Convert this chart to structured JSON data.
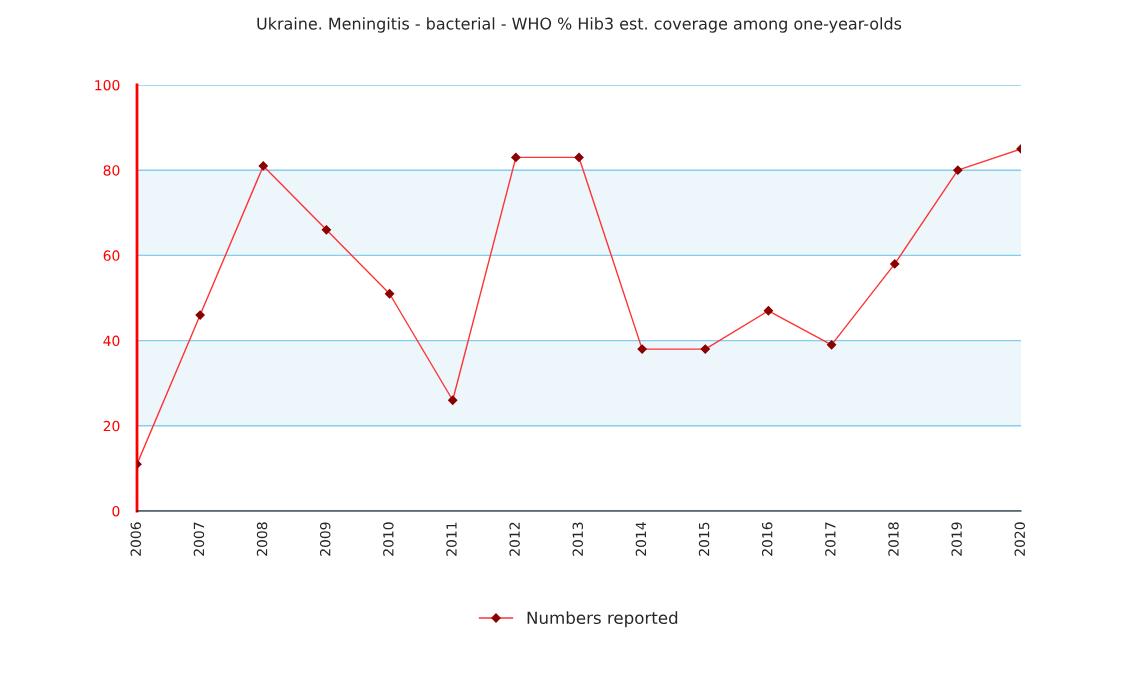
{
  "chart_data": {
    "type": "line",
    "title": "Ukraine. Meningitis - bacterial - WHO % Hib3 est. coverage among one-year-olds",
    "categories": [
      "2006",
      "2007",
      "2008",
      "2009",
      "2010",
      "2011",
      "2012",
      "2013",
      "2014",
      "2015",
      "2016",
      "2017",
      "2018",
      "2019",
      "2020"
    ],
    "series": [
      {
        "name": "Numbers reported",
        "color": "#ff3333",
        "values": [
          11,
          46,
          81,
          66,
          51,
          26,
          83,
          83,
          38,
          38,
          47,
          39,
          58,
          80,
          85
        ]
      }
    ],
    "ylim": [
      0,
      100
    ],
    "yticks": [
      0,
      20,
      40,
      60,
      80,
      100
    ],
    "grid": "y",
    "legend": "bottom",
    "marker": "diamond",
    "line_style": "solid",
    "bands": [
      {
        "axis": "y",
        "from": 20,
        "to": 40,
        "color": "#ecf6fb"
      },
      {
        "axis": "y",
        "from": 60,
        "to": 80,
        "color": "#ecf6fb"
      }
    ]
  }
}
